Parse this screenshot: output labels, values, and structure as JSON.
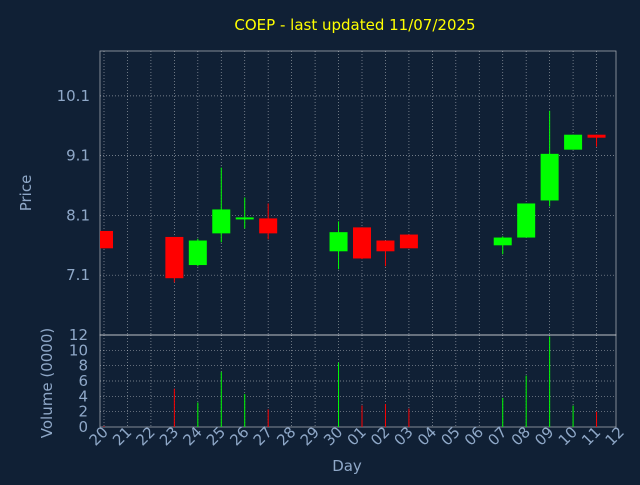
{
  "colors": {
    "background": "#102035",
    "title": "#ffff00",
    "axis_text": "#8fa8c8",
    "grid": "#ffffff",
    "frame": "#ffffff",
    "up": "#00ff00",
    "down": "#ff0000"
  },
  "chart_data": [
    {
      "type": "candlestick",
      "title": "COEP - last updated 11/07/2025",
      "ylabel": "Price",
      "ylim": [
        6.1,
        10.85
      ],
      "yticks": [
        7.1,
        8.1,
        9.1,
        10.1
      ],
      "ytick_labels": [
        "7.1",
        "8.1",
        "9.1",
        "10.1"
      ],
      "grid": true,
      "candles": [
        {
          "date": "20",
          "open": 7.84,
          "high": 7.84,
          "low": 7.55,
          "close": 7.55
        },
        {
          "date": "23",
          "open": 7.74,
          "high": 7.74,
          "low": 6.98,
          "close": 7.05
        },
        {
          "date": "24",
          "open": 7.27,
          "high": 7.71,
          "low": 7.25,
          "close": 7.68
        },
        {
          "date": "25",
          "open": 7.8,
          "high": 8.9,
          "low": 7.65,
          "close": 8.2
        },
        {
          "date": "26",
          "open": 8.02,
          "high": 8.4,
          "low": 7.88,
          "close": 8.05
        },
        {
          "date": "27",
          "open": 8.05,
          "high": 8.3,
          "low": 7.7,
          "close": 7.8
        },
        {
          "date": "30",
          "open": 7.5,
          "high": 8.0,
          "low": 7.2,
          "close": 7.82
        },
        {
          "date": "01",
          "open": 7.9,
          "high": 7.9,
          "low": 7.37,
          "close": 7.38
        },
        {
          "date": "02",
          "open": 7.68,
          "high": 7.68,
          "low": 7.25,
          "close": 7.5
        },
        {
          "date": "03",
          "open": 7.78,
          "high": 7.78,
          "low": 7.55,
          "close": 7.55
        },
        {
          "date": "07",
          "open": 7.6,
          "high": 7.75,
          "low": 7.45,
          "close": 7.73
        },
        {
          "date": "08",
          "open": 7.73,
          "high": 8.3,
          "low": 7.73,
          "close": 8.3
        },
        {
          "date": "09",
          "open": 8.35,
          "high": 9.85,
          "low": 8.25,
          "close": 9.13
        },
        {
          "date": "10",
          "open": 9.2,
          "high": 9.45,
          "low": 9.2,
          "close": 9.45
        },
        {
          "date": "11",
          "open": 9.45,
          "high": 9.45,
          "low": 9.25,
          "close": 9.4
        }
      ]
    },
    {
      "type": "bar",
      "ylabel": "Volume (0000)",
      "xlabel": "Day",
      "ylim": [
        0,
        12
      ],
      "yticks": [
        0,
        2,
        4,
        6,
        8,
        10,
        12
      ],
      "ytick_labels": [
        "0",
        "2",
        "4",
        "6",
        "8",
        "10",
        "12"
      ],
      "x": [
        "20",
        "21",
        "22",
        "23",
        "24",
        "25",
        "26",
        "27",
        "28",
        "29",
        "30",
        "01",
        "02",
        "03",
        "04",
        "05",
        "06",
        "07",
        "08",
        "09",
        "10",
        "11",
        "12"
      ],
      "volumes": [
        {
          "date": "20",
          "value": 0.1,
          "direction": "down"
        },
        {
          "date": "23",
          "value": 5.0,
          "direction": "down"
        },
        {
          "date": "24",
          "value": 3.2,
          "direction": "up"
        },
        {
          "date": "25",
          "value": 7.2,
          "direction": "up"
        },
        {
          "date": "26",
          "value": 4.3,
          "direction": "up"
        },
        {
          "date": "27",
          "value": 2.3,
          "direction": "down"
        },
        {
          "date": "30",
          "value": 8.4,
          "direction": "up"
        },
        {
          "date": "01",
          "value": 2.8,
          "direction": "down"
        },
        {
          "date": "02",
          "value": 3.0,
          "direction": "down"
        },
        {
          "date": "03",
          "value": 2.4,
          "direction": "down"
        },
        {
          "date": "07",
          "value": 3.8,
          "direction": "up"
        },
        {
          "date": "08",
          "value": 6.7,
          "direction": "up"
        },
        {
          "date": "09",
          "value": 11.8,
          "direction": "up"
        },
        {
          "date": "10",
          "value": 2.8,
          "direction": "up"
        },
        {
          "date": "11",
          "value": 2.0,
          "direction": "down"
        }
      ]
    }
  ]
}
